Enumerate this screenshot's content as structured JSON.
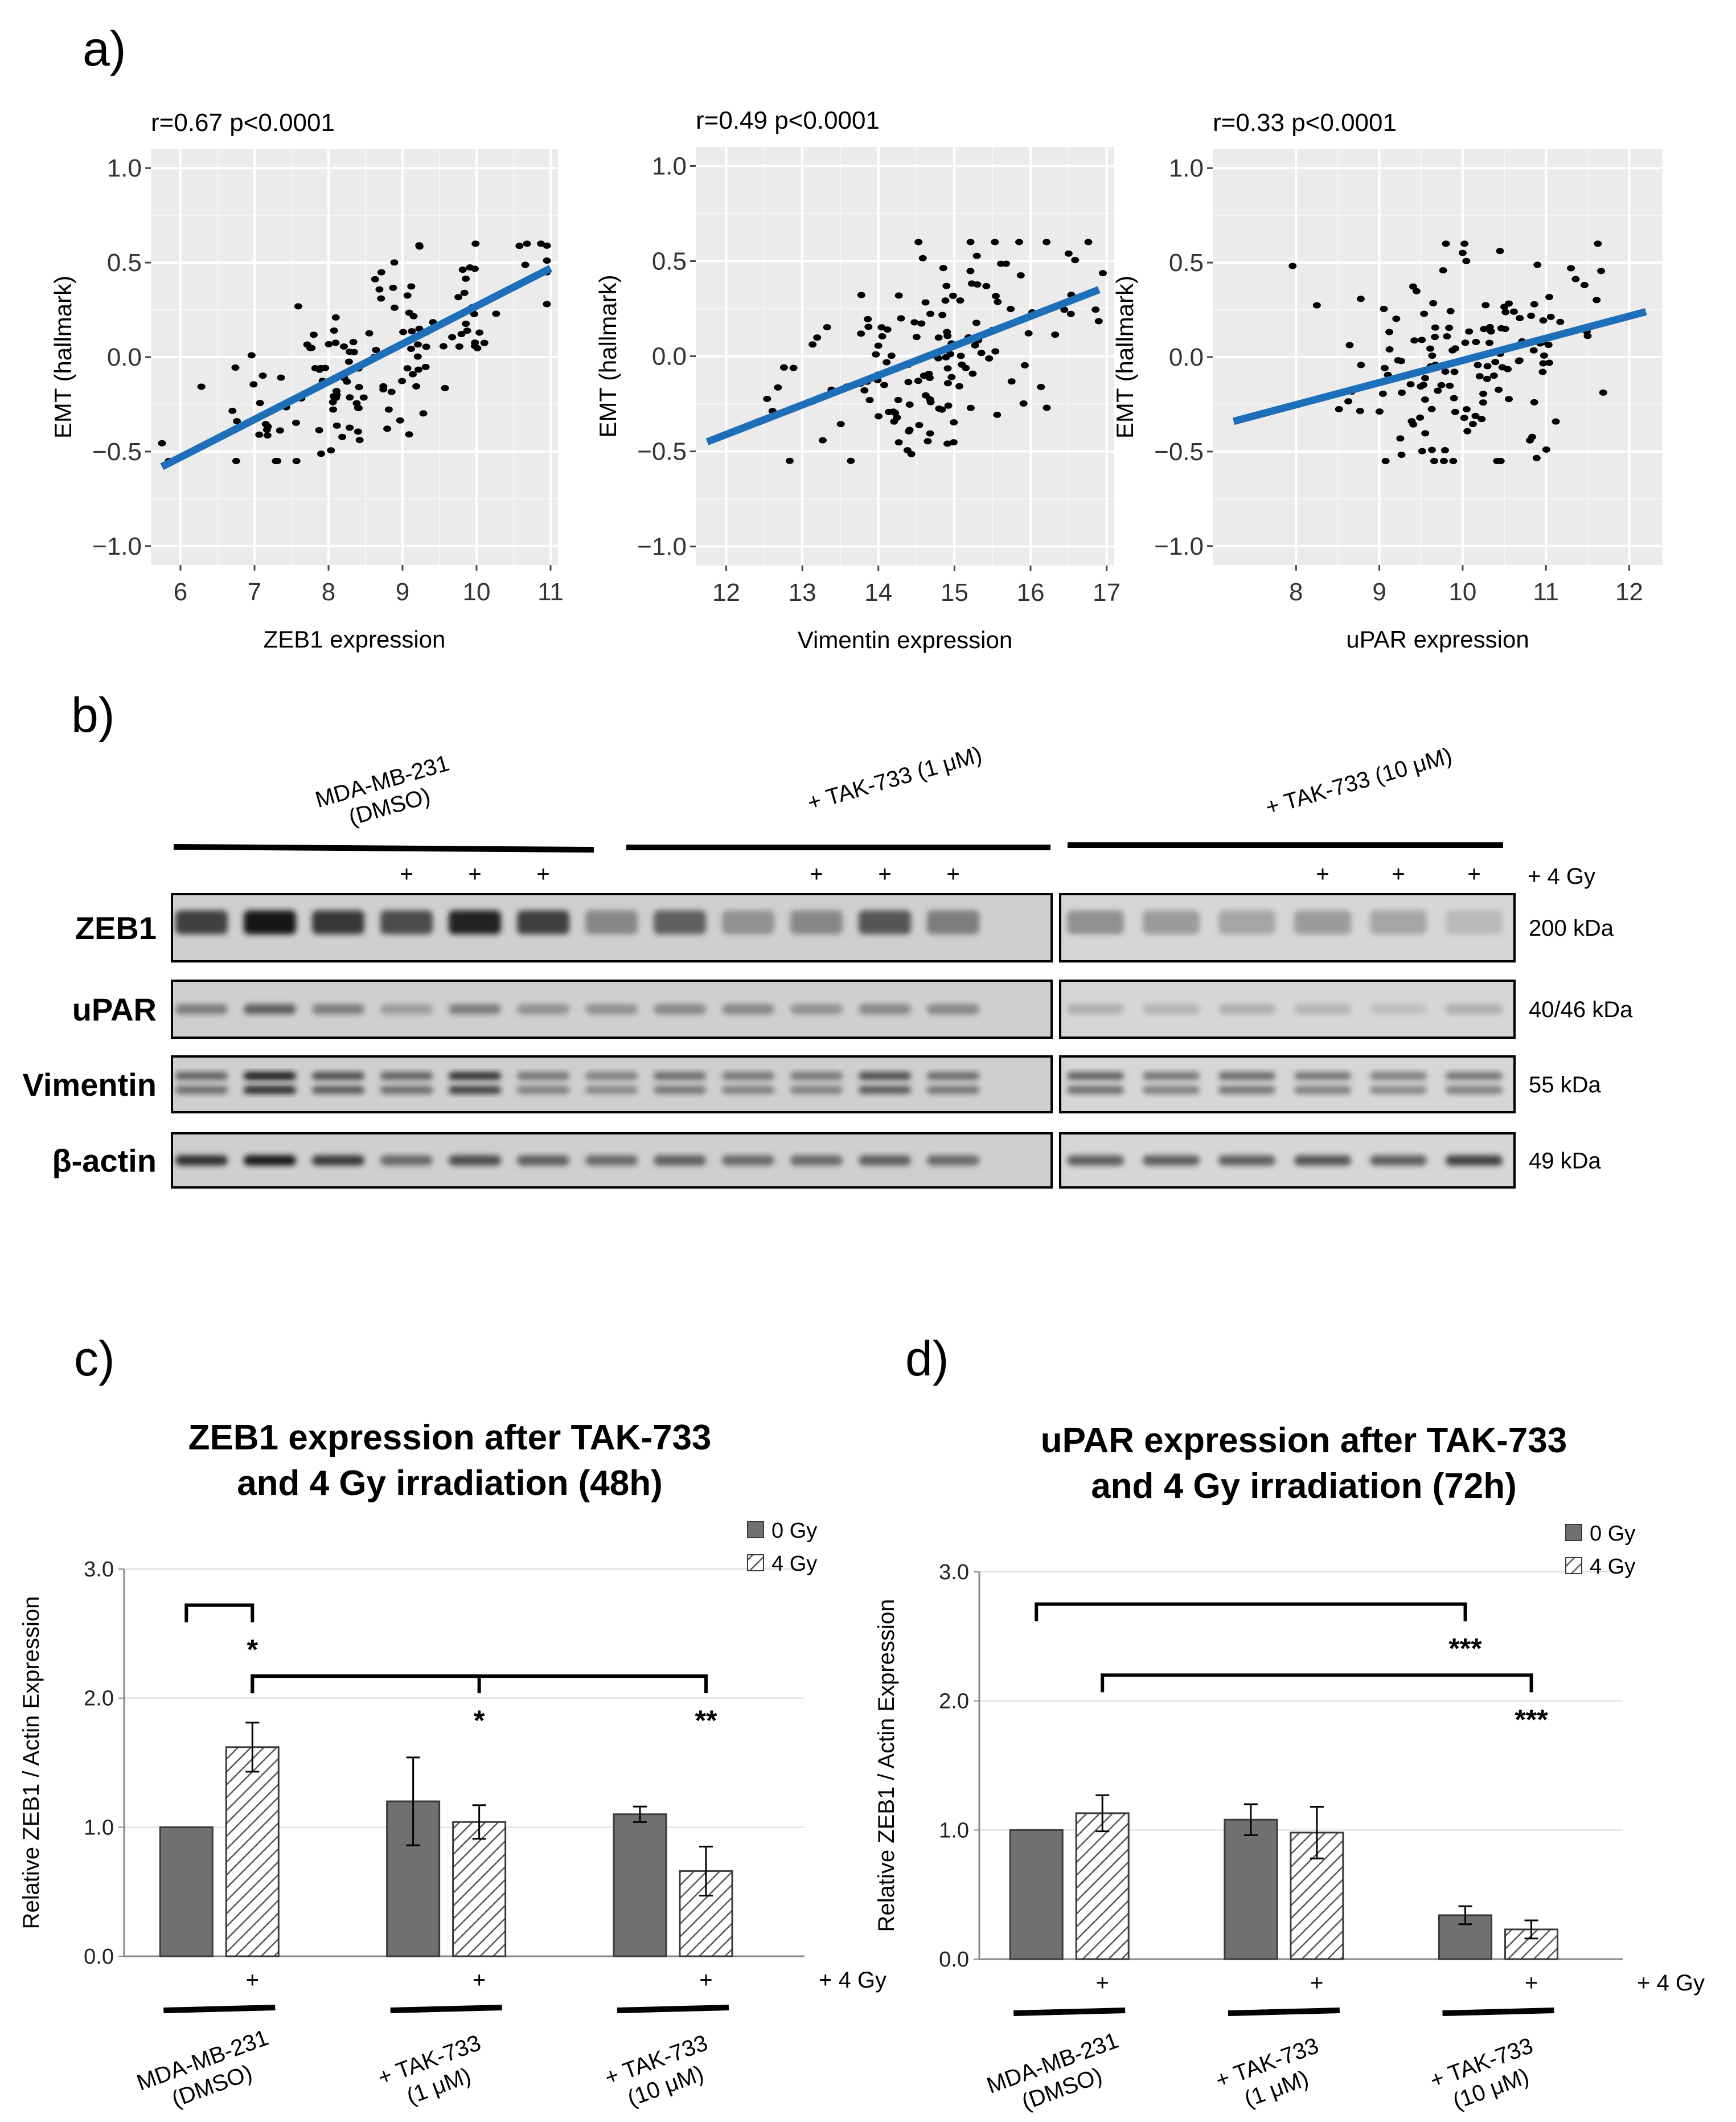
{
  "panels": {
    "a": "a)",
    "b": "b)",
    "c": "c)",
    "d": "d)"
  },
  "scatter_plots": [
    {
      "id": "zeb1",
      "stat_label": "r=0.67 p<0.0001",
      "xlabel": "ZEB1 expression",
      "ylabel": "EMT (hallmark)",
      "xlim": [
        5.6,
        11.1
      ],
      "ylim": [
        -1.1,
        1.1
      ],
      "xticks": [
        6,
        7,
        8,
        9,
        10,
        11
      ],
      "yticks": [
        -1.0,
        -0.5,
        0.0,
        0.5,
        1.0
      ],
      "ytick_labels": [
        "−1.0",
        "−0.5",
        "0.0",
        "0.5",
        "1.0"
      ],
      "fit_line": [
        [
          5.75,
          -0.58
        ],
        [
          11.0,
          0.47
        ]
      ],
      "n_points": 140,
      "x_center": 8.5,
      "x_spread": 1.1,
      "y_noise": 0.22
    },
    {
      "id": "vimentin",
      "stat_label": "r=0.49 p<0.0001",
      "xlabel": "Vimentin expression",
      "ylabel": "EMT (hallmark)",
      "xlim": [
        11.6,
        17.1
      ],
      "ylim": [
        -1.1,
        1.1
      ],
      "xticks": [
        12,
        13,
        14,
        15,
        16,
        17
      ],
      "yticks": [
        -1.0,
        -0.5,
        0.0,
        0.5,
        1.0
      ],
      "ytick_labels": [
        "−1.0",
        "−0.5",
        "0.0",
        "0.5",
        "1.0"
      ],
      "fit_line": [
        [
          11.75,
          -0.45
        ],
        [
          16.9,
          0.35
        ]
      ],
      "n_points": 140,
      "x_center": 14.6,
      "x_spread": 0.95,
      "y_noise": 0.26
    },
    {
      "id": "upar",
      "stat_label": "r=0.33 p<0.0001",
      "xlabel": "uPAR expression",
      "ylabel": "EMT (hallmark)",
      "xlim": [
        7.0,
        12.4
      ],
      "ylim": [
        -1.1,
        1.1
      ],
      "xticks": [
        8,
        9,
        10,
        11,
        12
      ],
      "yticks": [
        -1.0,
        -0.5,
        0.0,
        0.5,
        1.0
      ],
      "ytick_labels": [
        "−1.0",
        "−0.5",
        "0.0",
        "0.5",
        "1.0"
      ],
      "fit_line": [
        [
          7.25,
          -0.34
        ],
        [
          12.2,
          0.24
        ]
      ],
      "n_points": 140,
      "x_center": 9.9,
      "x_spread": 0.85,
      "y_noise": 0.27
    }
  ],
  "western_blot": {
    "groups": [
      "MDA-MB-231\n(DMSO)",
      "+ TAK-733 (1 μM)",
      "+ TAK-733 (10 μM)"
    ],
    "irradiation_label": "+ 4 Gy",
    "plus_sign": "+",
    "rows": [
      {
        "name": "ZEB1",
        "kda": "200 kDa",
        "intensity": [
          0.75,
          0.95,
          0.8,
          0.7,
          0.9,
          0.75,
          0.4,
          0.6,
          0.35,
          0.4,
          0.65,
          0.45,
          0.35,
          0.3,
          0.25,
          0.3,
          0.25,
          0.15
        ]
      },
      {
        "name": "uPAR",
        "kda": "40/46 kDa",
        "intensity": [
          0.45,
          0.6,
          0.45,
          0.3,
          0.45,
          0.35,
          0.35,
          0.4,
          0.4,
          0.35,
          0.4,
          0.4,
          0.2,
          0.18,
          0.2,
          0.18,
          0.12,
          0.2
        ]
      },
      {
        "name": "Vimentin",
        "kda": "55 kDa",
        "intensity": [
          0.6,
          0.95,
          0.7,
          0.6,
          0.85,
          0.5,
          0.45,
          0.55,
          0.5,
          0.5,
          0.7,
          0.55,
          0.6,
          0.5,
          0.55,
          0.5,
          0.45,
          0.5
        ]
      },
      {
        "name": "β-actin",
        "kda": "49 kDa",
        "intensity": [
          0.85,
          0.95,
          0.8,
          0.55,
          0.7,
          0.6,
          0.55,
          0.6,
          0.55,
          0.55,
          0.6,
          0.55,
          0.6,
          0.6,
          0.6,
          0.65,
          0.6,
          0.75
        ]
      }
    ]
  },
  "chart_data": [
    {
      "type": "bar",
      "title": "ZEB1 expression after TAK-733\nand 4 Gy irradiation  (48h)",
      "ylabel": "Relative ZEB1 / Actin Expression",
      "ylim": [
        0,
        3.0
      ],
      "yticks": [
        0.0,
        1.0,
        2.0,
        3.0
      ],
      "ytick_labels": [
        "0.0",
        "1.0",
        "2.0",
        "3.0"
      ],
      "categories": [
        "MDA-MB-231\n(DMSO)",
        "+ TAK-733\n(1 μM)",
        "+ TAK-733\n(10 μM)"
      ],
      "series": [
        {
          "name": "0 Gy",
          "values": [
            1.0,
            1.2,
            1.1
          ],
          "errors": [
            0.0,
            0.34,
            0.06
          ]
        },
        {
          "name": "4 Gy",
          "values": [
            1.62,
            1.04,
            0.66
          ],
          "errors": [
            0.19,
            0.13,
            0.19
          ]
        }
      ],
      "irradiation_label": "+ 4 Gy",
      "plus_sign": "+",
      "significance": [
        {
          "from": [
            0,
            0
          ],
          "to": [
            0,
            1
          ],
          "level": 2.72,
          "label": "*"
        },
        {
          "from": [
            0,
            1
          ],
          "to": [
            1,
            1
          ],
          "level": 2.17,
          "label": "*"
        },
        {
          "from": [
            0,
            1
          ],
          "to": [
            2,
            1
          ],
          "level": 2.17,
          "label": "**"
        }
      ]
    },
    {
      "type": "bar",
      "title": "uPAR expression after TAK-733\nand 4 Gy irradiation  (72h)",
      "ylabel": "Relative ZEB1 / Actin Expression",
      "ylim": [
        0,
        3.0
      ],
      "yticks": [
        0.0,
        1.0,
        2.0,
        3.0
      ],
      "ytick_labels": [
        "0.0",
        "1.0",
        "2.0",
        "3.0"
      ],
      "categories": [
        "MDA-MB-231\n(DMSO)",
        "+ TAK-733\n(1 μM)",
        "+ TAK-733\n(10 μM)"
      ],
      "series": [
        {
          "name": "0 Gy",
          "values": [
            1.0,
            1.08,
            0.34
          ],
          "errors": [
            0.0,
            0.12,
            0.07
          ]
        },
        {
          "name": "4 Gy",
          "values": [
            1.13,
            0.98,
            0.23
          ],
          "errors": [
            0.14,
            0.2,
            0.07
          ]
        }
      ],
      "irradiation_label": "+ 4 Gy",
      "plus_sign": "+",
      "significance": [
        {
          "from": [
            0,
            0
          ],
          "to": [
            2,
            0
          ],
          "level": 2.75,
          "label": "***"
        },
        {
          "from": [
            0,
            1
          ],
          "to": [
            2,
            1
          ],
          "level": 2.2,
          "label": "***"
        }
      ]
    }
  ]
}
